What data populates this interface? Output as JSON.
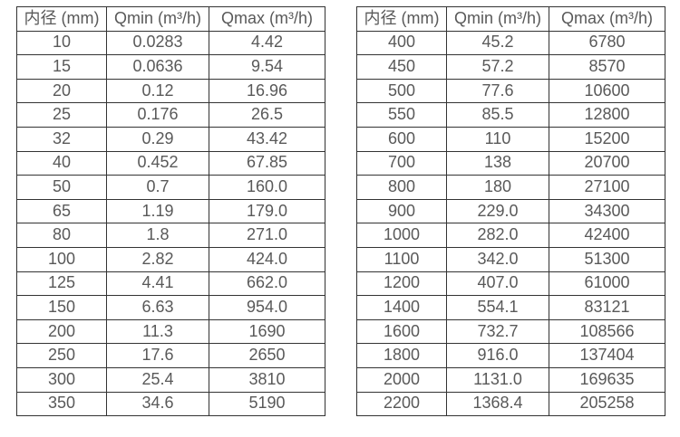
{
  "colors": {
    "text": "#595959",
    "border": "#333333",
    "background": "#ffffff"
  },
  "tables": [
    {
      "name": "flow-rates-small-diameters",
      "headers": [
        "内径 (mm)",
        "Qmin (m³/h)",
        "Qmax (m³/h)"
      ],
      "rows": [
        [
          "10",
          "0.0283",
          "4.42"
        ],
        [
          "15",
          "0.0636",
          "9.54"
        ],
        [
          "20",
          "0.12",
          "16.96"
        ],
        [
          "25",
          "0.176",
          "26.5"
        ],
        [
          "32",
          "0.29",
          "43.42"
        ],
        [
          "40",
          "0.452",
          "67.85"
        ],
        [
          "50",
          "0.7",
          "160.0"
        ],
        [
          "65",
          "1.19",
          "179.0"
        ],
        [
          "80",
          "1.8",
          "271.0"
        ],
        [
          "100",
          "2.82",
          "424.0"
        ],
        [
          "125",
          "4.41",
          "662.0"
        ],
        [
          "150",
          "6.63",
          "954.0"
        ],
        [
          "200",
          "11.3",
          "1690"
        ],
        [
          "250",
          "17.6",
          "2650"
        ],
        [
          "300",
          "25.4",
          "3810"
        ],
        [
          "350",
          "34.6",
          "5190"
        ]
      ]
    },
    {
      "name": "flow-rates-large-diameters",
      "headers": [
        "内径 (mm)",
        "Qmin (m³/h)",
        "Qmax (m³/h)"
      ],
      "rows": [
        [
          "400",
          "45.2",
          "6780"
        ],
        [
          "450",
          "57.2",
          "8570"
        ],
        [
          "500",
          "77.6",
          "10600"
        ],
        [
          "550",
          "85.5",
          "12800"
        ],
        [
          "600",
          "110",
          "15200"
        ],
        [
          "700",
          "138",
          "20700"
        ],
        [
          "800",
          "180",
          "27100"
        ],
        [
          "900",
          "229.0",
          "34300"
        ],
        [
          "1000",
          "282.0",
          "42400"
        ],
        [
          "1100",
          "342.0",
          "51300"
        ],
        [
          "1200",
          "407.0",
          "61000"
        ],
        [
          "1400",
          "554.1",
          "83121"
        ],
        [
          "1600",
          "732.7",
          "108566"
        ],
        [
          "1800",
          "916.0",
          "137404"
        ],
        [
          "2000",
          "1131.0",
          "169635"
        ],
        [
          "2200",
          "1368.4",
          "205258"
        ]
      ]
    }
  ]
}
